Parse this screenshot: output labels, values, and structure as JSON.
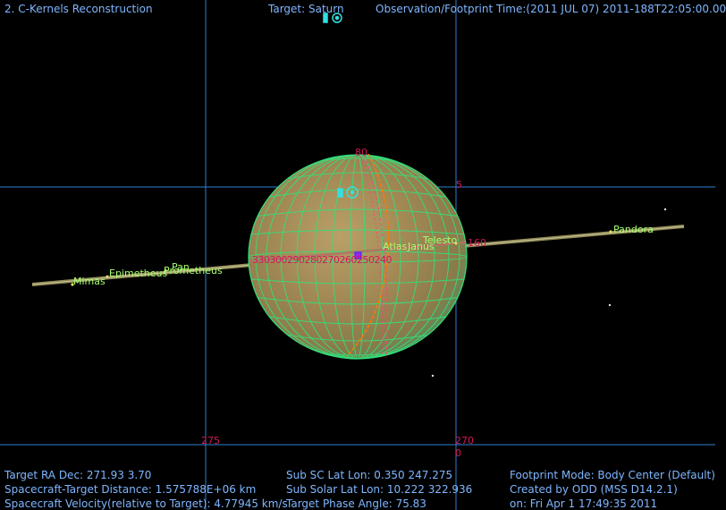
{
  "header": {
    "window_title": "2. C-Kernels Reconstruction",
    "target": "Target: Saturn",
    "obs_time": "Observation/Footprint Time:(2011 JUL 07) 2011-188T22:05:00.00"
  },
  "grid_labels": {
    "lat_top": "80",
    "lat_mid": "5",
    "ra_left": "275",
    "ra_right": "270",
    "dec_zero": "0",
    "lon_ticks": "330300290280270260250240",
    "lon_right": "160"
  },
  "moons": {
    "mimas": "Mimas",
    "epimetheus": "Epimetheus",
    "pan": "Pan",
    "prometheus": "Prometheus",
    "atlas": "Atlas",
    "janus": "Janus",
    "telesto": "Telesto",
    "pandora": "Pandora"
  },
  "footer": {
    "ra_dec": "Target RA Dec: 271.93    3.70",
    "distance": "Spacecraft-Target Distance: 1.575788E+06 km",
    "velocity": "Spacecraft Velocity(relative to Target): 4.77945 km/s",
    "sub_sc": "Sub SC Lat Lon:  0.350  247.275",
    "sub_solar": "Sub Solar Lat Lon: 10.222  322.936",
    "phase": "Target Phase Angle: 75.83",
    "footprint_mode": "Footprint Mode: Body Center (Default)",
    "created_by": "Created by ODD (MSS D14.2.1)",
    "created_on": "on: Fri Apr  1 17:49:35 2011"
  },
  "colors": {
    "text": "#7fb6ff",
    "grid_lines": "#2f7fd0",
    "planet_grid": "#33e07a",
    "moon_labels": "#a6ff70",
    "lon_labels": "#d4175a",
    "terminator": "#ff7a00"
  }
}
